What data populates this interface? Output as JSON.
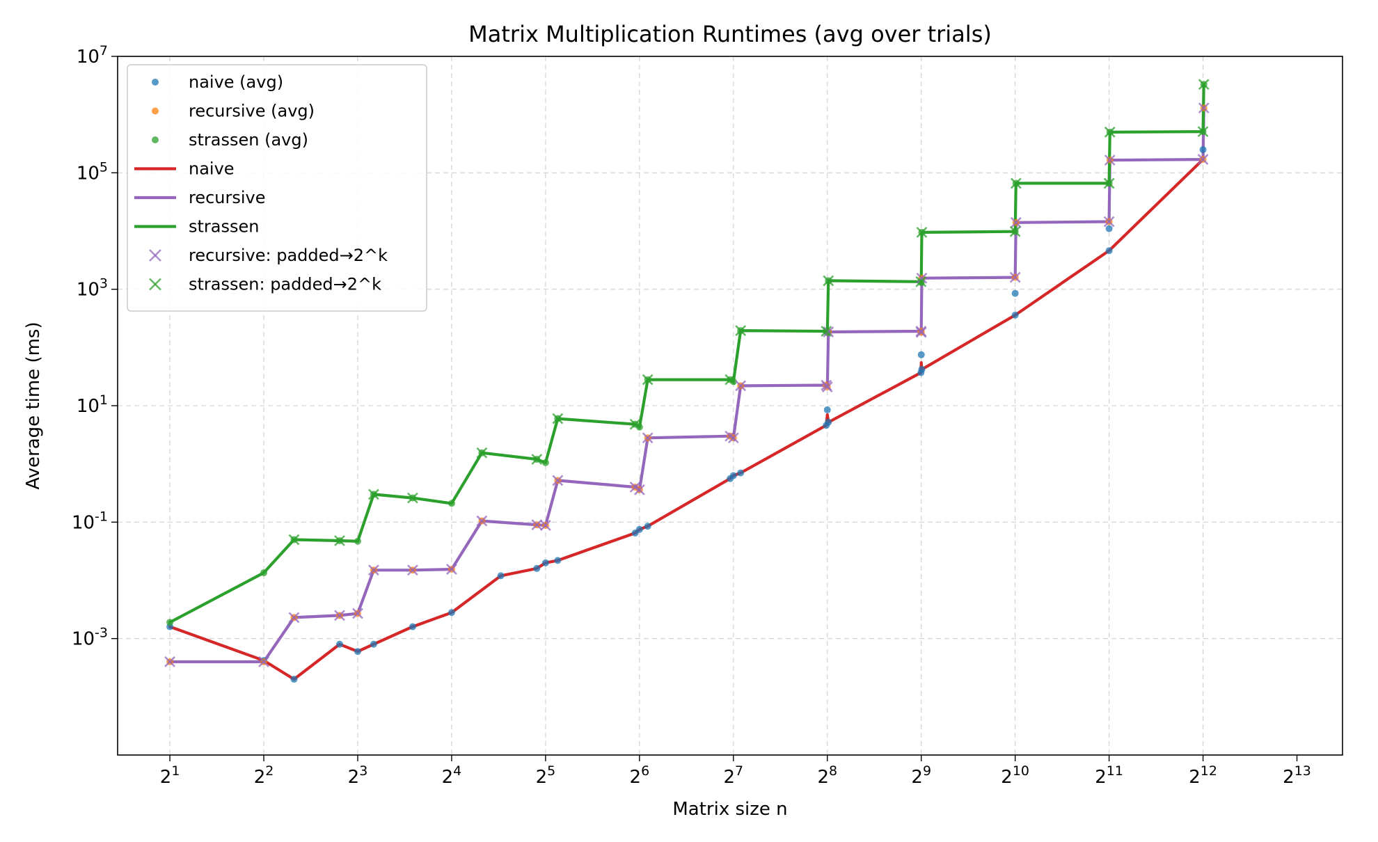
{
  "chart_data": {
    "type": "line",
    "title": "Matrix Multiplication Runtimes (avg over trials)",
    "xlabel": "Matrix size n",
    "ylabel": "Average time (ms)",
    "x_scale": "log2",
    "y_scale": "log10",
    "xlim": [
      1.36,
      11466
    ],
    "ylim": [
      1e-05,
      10000000
    ],
    "grid": true,
    "legend_position": "top-left",
    "x_tick_labels": [
      "2^1",
      "2^2",
      "2^3",
      "2^4",
      "2^5",
      "2^6",
      "2^7",
      "2^8",
      "2^9",
      "2^10",
      "2^11",
      "2^12",
      "2^13"
    ],
    "y_tick_labels": [
      "10^-3",
      "10^-1",
      "10^1",
      "10^3",
      "10^5",
      "10^7"
    ],
    "legend": [
      {
        "label": "naive (avg)",
        "kind": "dot",
        "color": "#1f77b4"
      },
      {
        "label": "recursive (avg)",
        "kind": "dot",
        "color": "#ff7f0e"
      },
      {
        "label": "strassen (avg)",
        "kind": "dot",
        "color": "#2ca02c"
      },
      {
        "label": "naive",
        "kind": "line",
        "color": "#d62728"
      },
      {
        "label": "recursive",
        "kind": "line",
        "color": "#9467bd"
      },
      {
        "label": "strassen",
        "kind": "line",
        "color": "#2ca02c"
      },
      {
        "label": "recursive: padded→2^k",
        "kind": "x",
        "color": "#9467bd"
      },
      {
        "label": "strassen: padded→2^k",
        "kind": "x",
        "color": "#2ca02c"
      }
    ],
    "series": [
      {
        "name": "naive",
        "color": "#d62728",
        "x": [
          2,
          4,
          5,
          7,
          8,
          9,
          12,
          16,
          23,
          30,
          32,
          35,
          62,
          64,
          68,
          125,
          128,
          135,
          254,
          256,
          258,
          511,
          512,
          514,
          1024,
          2048,
          4096
        ],
        "y": [
          0.0016,
          0.00042,
          0.0002,
          0.0008,
          0.0006,
          0.0008,
          0.0016,
          0.0028,
          0.012,
          0.016,
          0.02,
          0.022,
          0.065,
          0.075,
          0.085,
          0.56,
          0.63,
          0.7,
          4.6,
          7.0,
          5.2,
          37,
          55,
          42,
          360,
          4600,
          170000
        ]
      },
      {
        "name": "recursive",
        "color": "#9467bd",
        "x": [
          2,
          4,
          5,
          7,
          8,
          9,
          12,
          16,
          20,
          30,
          32,
          35,
          62,
          64,
          68,
          125,
          128,
          135,
          254,
          256,
          258,
          511,
          512,
          514,
          1024,
          1030,
          2048,
          2060,
          4096,
          4120
        ],
        "y": [
          0.0004,
          0.0004,
          0.0023,
          0.0025,
          0.0027,
          0.015,
          0.015,
          0.0155,
          0.105,
          0.09,
          0.088,
          0.52,
          0.4,
          0.36,
          2.8,
          3.0,
          2.8,
          22,
          22.5,
          21,
          185,
          190,
          182,
          1550,
          1600,
          14000,
          14500,
          165000,
          170000,
          1300000
        ]
      },
      {
        "name": "strassen",
        "color": "#2ca02c",
        "x": [
          2,
          4,
          5,
          7,
          8,
          9,
          12,
          16,
          20,
          30,
          32,
          35,
          62,
          64,
          68,
          125,
          128,
          135,
          254,
          256,
          258,
          511,
          512,
          514,
          1024,
          1030,
          2048,
          2060,
          4096,
          4120
        ],
        "y": [
          0.0019,
          0.0135,
          0.05,
          0.048,
          0.047,
          0.3,
          0.26,
          0.21,
          1.55,
          1.2,
          1.05,
          6.0,
          4.8,
          4.3,
          28,
          28,
          26,
          195,
          190,
          180,
          1400,
          1350,
          1300,
          9500,
          9800,
          66000,
          66000,
          500000,
          510000,
          3300000
        ]
      }
    ],
    "scatter_series": [
      {
        "name": "naive (avg)",
        "color": "#1f77b4",
        "x": [
          2,
          4,
          5,
          7,
          8,
          9,
          12,
          16,
          23,
          30,
          32,
          35,
          62,
          64,
          68,
          125,
          128,
          135,
          254,
          256,
          258,
          511,
          512,
          514,
          1024,
          1024,
          2048,
          2048,
          4096
        ],
        "y": [
          0.0016,
          0.00042,
          0.0002,
          0.0008,
          0.0006,
          0.0008,
          0.0016,
          0.0028,
          0.012,
          0.016,
          0.02,
          0.022,
          0.065,
          0.075,
          0.085,
          0.56,
          0.63,
          0.7,
          4.6,
          8.5,
          5.2,
          37,
          75,
          42,
          360,
          850,
          4600,
          11000,
          250000
        ]
      },
      {
        "name": "recursive (avg)",
        "color": "#ff7f0e",
        "x": [
          2,
          4,
          5,
          7,
          8,
          9,
          12,
          16,
          20,
          30,
          32,
          35,
          62,
          64,
          68,
          125,
          128,
          135,
          254,
          256,
          258,
          511,
          512,
          514,
          1024,
          1030,
          2048,
          2060,
          4096,
          4120
        ],
        "y": [
          0.0004,
          0.0004,
          0.0023,
          0.0025,
          0.0027,
          0.015,
          0.015,
          0.0155,
          0.105,
          0.09,
          0.088,
          0.52,
          0.4,
          0.36,
          2.8,
          3.0,
          2.8,
          22,
          22.5,
          21,
          185,
          190,
          182,
          1550,
          1600,
          14000,
          14500,
          165000,
          170000,
          1300000
        ]
      },
      {
        "name": "strassen (avg)",
        "color": "#2ca02c",
        "x": [
          2,
          4,
          5,
          7,
          8,
          9,
          12,
          16,
          20,
          30,
          32,
          35,
          62,
          64,
          68,
          125,
          128,
          135,
          254,
          256,
          258,
          511,
          512,
          514,
          1024,
          1030,
          2048,
          2060,
          4096,
          4120
        ],
        "y": [
          0.0019,
          0.0135,
          0.05,
          0.048,
          0.047,
          0.3,
          0.26,
          0.21,
          1.55,
          1.2,
          1.05,
          6.0,
          4.8,
          4.3,
          28,
          28,
          26,
          195,
          190,
          180,
          1400,
          1350,
          1300,
          9500,
          9800,
          66000,
          66000,
          500000,
          510000,
          3300000
        ]
      }
    ],
    "marker_series": [
      {
        "name": "recursive: padded→2^k",
        "color": "#9467bd",
        "x": [
          2,
          4,
          5,
          7,
          8,
          9,
          12,
          16,
          20,
          30,
          32,
          35,
          62,
          64,
          68,
          125,
          128,
          135,
          254,
          256,
          258,
          511,
          512,
          514,
          1024,
          1030,
          2048,
          2060,
          4096,
          4120
        ],
        "y": [
          0.0004,
          0.0004,
          0.0023,
          0.0025,
          0.0027,
          0.015,
          0.015,
          0.0155,
          0.105,
          0.09,
          0.088,
          0.52,
          0.4,
          0.36,
          2.8,
          3.0,
          2.8,
          22,
          22.5,
          21,
          185,
          190,
          182,
          1550,
          1600,
          14000,
          14500,
          165000,
          170000,
          1300000
        ]
      },
      {
        "name": "strassen: padded→2^k",
        "color": "#2ca02c",
        "x": [
          5,
          7,
          9,
          12,
          20,
          30,
          35,
          62,
          68,
          125,
          135,
          254,
          258,
          511,
          514,
          1024,
          1030,
          2048,
          2060,
          4096,
          4120
        ],
        "y": [
          0.05,
          0.048,
          0.3,
          0.26,
          1.55,
          1.2,
          6.0,
          4.8,
          28,
          28,
          195,
          190,
          1400,
          1350,
          9500,
          9800,
          66000,
          66000,
          500000,
          510000,
          3300000
        ]
      }
    ]
  }
}
